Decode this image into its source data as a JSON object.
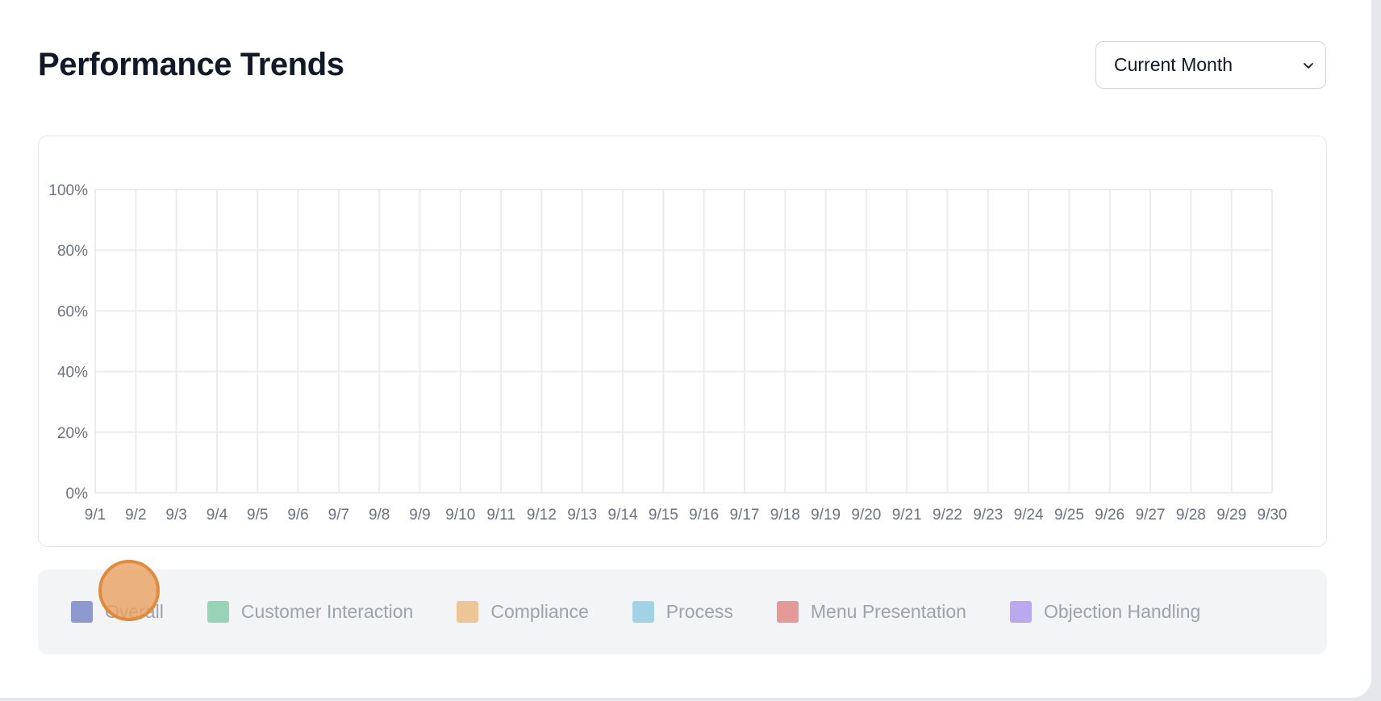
{
  "header": {
    "title": "Performance Trends"
  },
  "period_select": {
    "selected": "Current Month"
  },
  "chart_data": {
    "type": "line",
    "x": [
      "9/1",
      "9/2",
      "9/3",
      "9/4",
      "9/5",
      "9/6",
      "9/7",
      "9/8",
      "9/9",
      "9/10",
      "9/11",
      "9/12",
      "9/13",
      "9/14",
      "9/15",
      "9/16",
      "9/17",
      "9/18",
      "9/19",
      "9/20",
      "9/21",
      "9/22",
      "9/23",
      "9/24",
      "9/25",
      "9/26",
      "9/27",
      "9/28",
      "9/29",
      "9/30"
    ],
    "y_ticks": [
      "0%",
      "20%",
      "40%",
      "60%",
      "80%",
      "100%"
    ],
    "ylim": [
      0,
      100
    ],
    "grid": true,
    "legend_placement": "bottom",
    "series": []
  },
  "legend": {
    "items": [
      {
        "label": "Overall",
        "color": "#3b4fb0"
      },
      {
        "label": "Customer Interaction",
        "color": "#4fb884"
      },
      {
        "label": "Compliance",
        "color": "#e8a04a"
      },
      {
        "label": "Process",
        "color": "#5db8d6"
      },
      {
        "label": "Menu Presentation",
        "color": "#d8504e"
      },
      {
        "label": "Objection Handling",
        "color": "#8a6ce8"
      }
    ]
  }
}
